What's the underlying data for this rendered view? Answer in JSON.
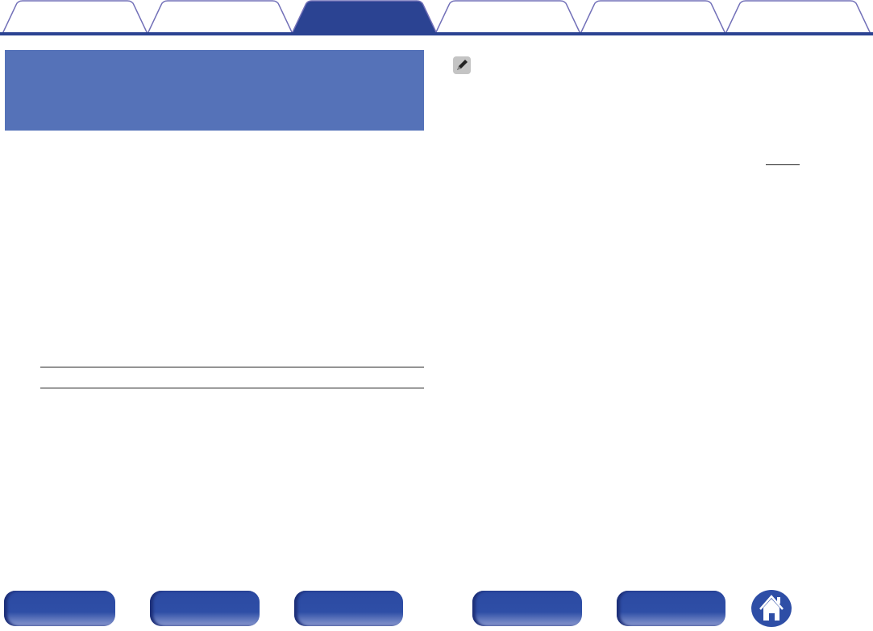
{
  "colors": {
    "accent": "#2b4392",
    "tab_border": "#7270b8",
    "header_box": "#5572b8",
    "nav_button": "#2e4ea6"
  },
  "tabs": [
    {
      "label": "",
      "active": false
    },
    {
      "label": "",
      "active": false
    },
    {
      "label": "",
      "active": true
    },
    {
      "label": "",
      "active": false
    },
    {
      "label": "",
      "active": false
    },
    {
      "label": "",
      "active": false
    }
  ],
  "header": {
    "title": ""
  },
  "note": {
    "icon": "pencil-icon"
  },
  "footer": {
    "buttons": [
      {
        "label": ""
      },
      {
        "label": ""
      },
      {
        "label": ""
      },
      {
        "label": ""
      },
      {
        "label": ""
      }
    ],
    "home_icon": "home-icon"
  }
}
